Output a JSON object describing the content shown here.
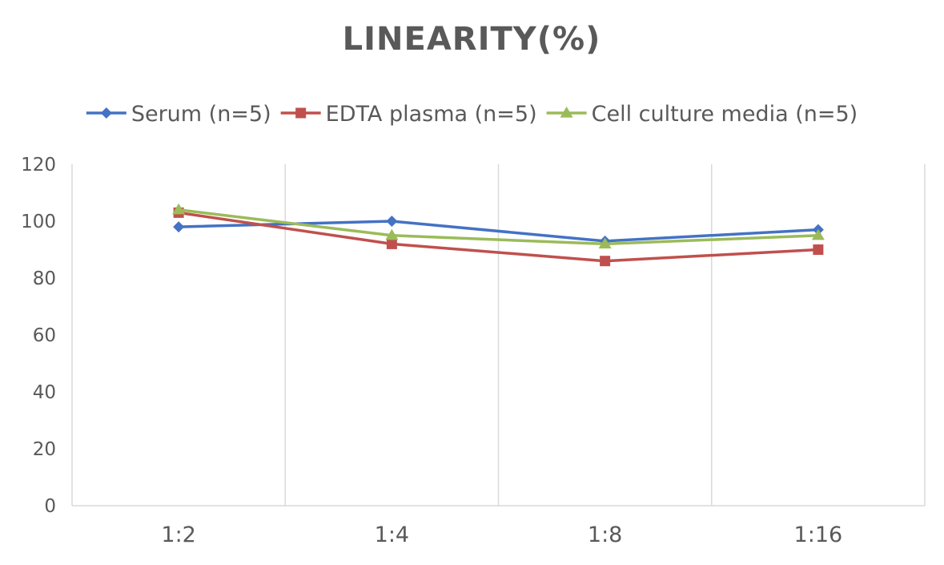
{
  "chart_data": {
    "type": "line",
    "title": "LINEARITY(%)",
    "categories": [
      "1:2",
      "1:4",
      "1:8",
      "1:16"
    ],
    "ylim": [
      0,
      120
    ],
    "yticks": [
      0,
      20,
      40,
      60,
      80,
      100,
      120
    ],
    "grid": "vertical",
    "legend_position": "top",
    "series": [
      {
        "name": "Serum (n=5)",
        "values": [
          98,
          100,
          93,
          97
        ],
        "color": "#4472c4",
        "marker": "diamond"
      },
      {
        "name": "EDTA plasma (n=5)",
        "values": [
          103,
          92,
          86,
          90
        ],
        "color": "#c0504d",
        "marker": "square"
      },
      {
        "name": "Cell culture media (n=5)",
        "values": [
          104,
          95,
          92,
          95
        ],
        "color": "#9bbb59",
        "marker": "triangle"
      }
    ]
  }
}
